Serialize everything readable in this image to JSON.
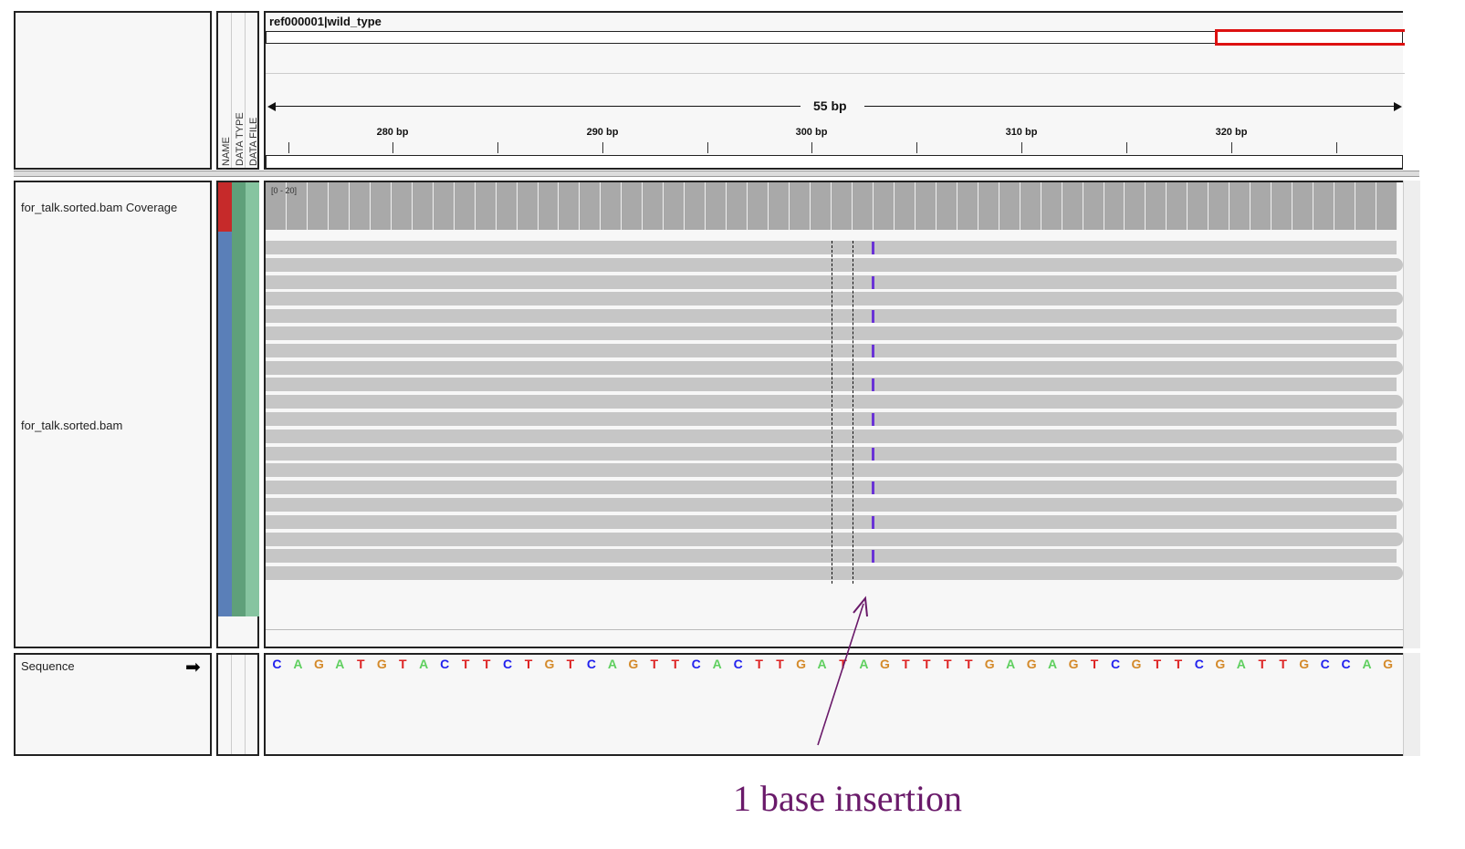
{
  "header": {
    "ref_label": "ref000001|wild_type",
    "span_label": "55 bp",
    "ticks": [
      "280 bp",
      "290 bp",
      "300 bp",
      "310 bp",
      "320 bp"
    ]
  },
  "attr_headers": [
    "NAME",
    "DATA TYPE",
    "DATA FILE"
  ],
  "tracks": {
    "coverage_label": "for_talk.sorted.bam Coverage",
    "coverage_range": "[0 - 20]",
    "alignment_label": "for_talk.sorted.bam",
    "sequence_label": "Sequence"
  },
  "sequence": [
    "C",
    "A",
    "G",
    "A",
    "T",
    "G",
    "T",
    "A",
    "C",
    "T",
    "T",
    "C",
    "T",
    "G",
    "T",
    "C",
    "A",
    "G",
    "T",
    "T",
    "C",
    "A",
    "C",
    "T",
    "T",
    "G",
    "A",
    "T",
    "A",
    "G",
    "T",
    "T",
    "T",
    "T",
    "G",
    "A",
    "G",
    "A",
    "G",
    "T",
    "C",
    "G",
    "T",
    "T",
    "C",
    "G",
    "A",
    "T",
    "T",
    "G",
    "C",
    "C",
    "A",
    "G"
  ],
  "base_colors": {
    "A": "#5fcf5f",
    "C": "#2222ee",
    "G": "#d48a2a",
    "T": "#dd2222"
  },
  "annotation": {
    "text": "1 base insertion",
    "color": "#6a1a6a"
  },
  "attr_colors": {
    "coverage_name": "#c62a2a",
    "alignment_name": "#5a7fb8",
    "data_type": "#5fa07a",
    "data_file": "#86c4a0"
  },
  "reads": {
    "count": 20,
    "insertion_every_other": true
  }
}
